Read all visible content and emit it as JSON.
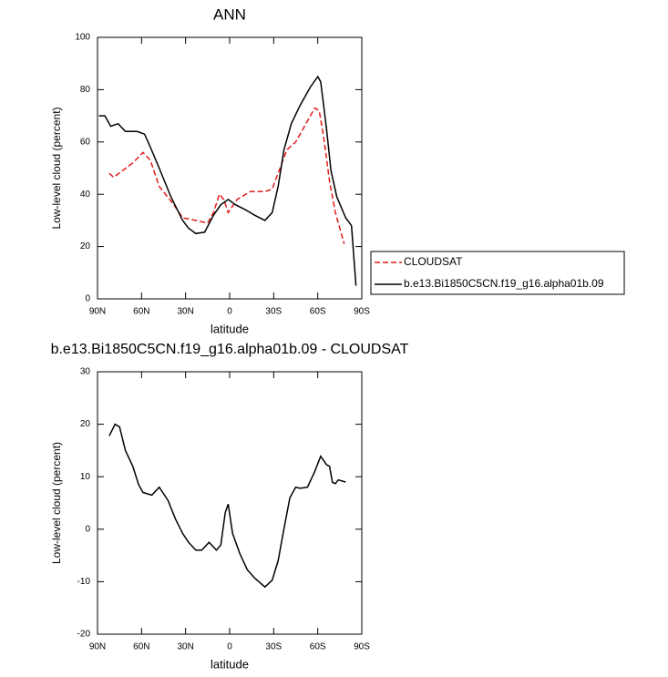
{
  "chart_data": [
    {
      "type": "line",
      "title": "ANN",
      "xlabel": "latitude",
      "ylabel": "Low-level cloud (percent)",
      "xlim": [
        90,
        -90
      ],
      "xticks": [
        {
          "value": 90,
          "label": "90N"
        },
        {
          "value": 60,
          "label": "60N"
        },
        {
          "value": 30,
          "label": "30N"
        },
        0,
        {
          "value": -30,
          "label": "30S"
        },
        {
          "value": -60,
          "label": "60S"
        },
        {
          "value": -90,
          "label": "90S"
        }
      ],
      "ylim": [
        0,
        100
      ],
      "yticks": [
        0,
        20,
        40,
        60,
        80,
        100
      ],
      "legend": "outside-right",
      "series": [
        {
          "name": "CLOUDSAT",
          "color": "#e41a1c",
          "style": "dashed",
          "x": [
            82,
            79,
            73,
            66,
            59,
            54,
            48,
            38,
            32,
            23,
            15,
            11,
            7,
            4,
            1,
            -5,
            -14,
            -24,
            -29,
            -33,
            -39,
            -45,
            -52,
            -58,
            -61,
            -64,
            -68,
            -72,
            -78
          ],
          "values": [
            48,
            46.5,
            49,
            52,
            56,
            53,
            43,
            36,
            31,
            30,
            29,
            33,
            40,
            38,
            33,
            38,
            41,
            41,
            42,
            48,
            57,
            60,
            67,
            73,
            72,
            62,
            45,
            33,
            21
          ]
        },
        {
          "name": "b.e13.Bi1850C5CN.f19_g16.alpha01b.09",
          "color": "#000000",
          "style": "solid",
          "x": [
            89,
            85,
            81,
            76,
            71,
            63,
            58,
            54,
            48,
            40,
            32,
            28,
            23,
            17,
            11,
            6,
            1,
            -4,
            -11,
            -17,
            -24,
            -29,
            -33,
            -37,
            -42,
            -48,
            -55,
            -60,
            -62,
            -66,
            -69,
            -73,
            -79,
            -83,
            -86
          ],
          "values": [
            70,
            70,
            66,
            67,
            64,
            64,
            63,
            58,
            50,
            39,
            30,
            27,
            25,
            25.5,
            32,
            36,
            38,
            36,
            34,
            32,
            30,
            33,
            43,
            57,
            67,
            74,
            81,
            85,
            83,
            65,
            49,
            39,
            31,
            28,
            5
          ]
        }
      ]
    },
    {
      "type": "line",
      "title": "b.e13.Bi1850C5CN.f19_g16.alpha01b.09 - CLOUDSAT",
      "xlabel": "latitude",
      "ylabel": "Low-level cloud (percent)",
      "xlim": [
        90,
        -90
      ],
      "xticks": [
        {
          "value": 90,
          "label": "90N"
        },
        {
          "value": 60,
          "label": "60N"
        },
        {
          "value": 30,
          "label": "30N"
        },
        0,
        {
          "value": -30,
          "label": "30S"
        },
        {
          "value": -60,
          "label": "60S"
        },
        {
          "value": -90,
          "label": "90S"
        }
      ],
      "ylim": [
        -20,
        30
      ],
      "yticks": [
        -20,
        -10,
        0,
        10,
        20,
        30
      ],
      "series": [
        {
          "color": "#000000",
          "style": "solid",
          "x": [
            82,
            78,
            75,
            71,
            66,
            62,
            59,
            53,
            48,
            42,
            37,
            32,
            28,
            23,
            19,
            14,
            9,
            6,
            3,
            1,
            -2,
            -7,
            -12,
            -17,
            -24,
            -29,
            -33,
            -37,
            -41,
            -45,
            -48,
            -53,
            -58,
            -62,
            -66,
            -68,
            -70,
            -72,
            -74,
            -79
          ],
          "values": [
            17.8,
            20,
            19.5,
            15,
            12,
            8.5,
            7,
            6.5,
            8,
            5.5,
            2,
            -0.8,
            -2.5,
            -4,
            -4,
            -2.5,
            -4,
            -3,
            3.2,
            4.8,
            -0.8,
            -4.7,
            -7.7,
            -9.3,
            -11,
            -9.7,
            -6,
            0.1,
            6,
            8,
            7.8,
            8,
            11,
            13.9,
            12.3,
            12,
            8.9,
            8.7,
            9.4,
            9
          ]
        }
      ]
    }
  ]
}
